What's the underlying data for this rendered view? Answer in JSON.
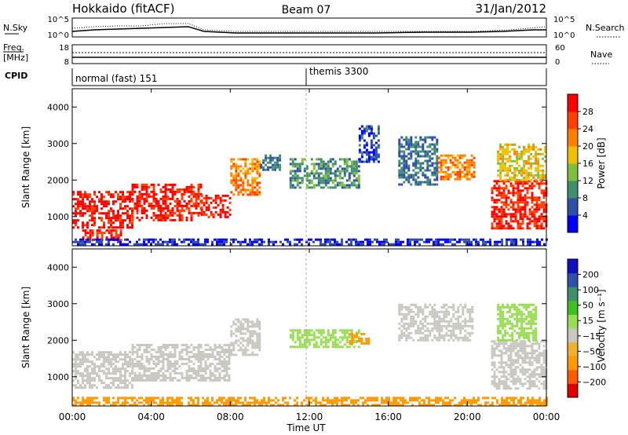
{
  "header": {
    "station": "Hokkaido (fitACF)",
    "beam": "Beam 07",
    "date": "31/Jan/2012"
  },
  "strips": {
    "nsky_label": "N.Sky",
    "nsearch_label": "N.Search",
    "nsky_ticks": [
      "10^5",
      "10^0"
    ],
    "freq_label_line1": "Freq.",
    "freq_label_line2": "[MHz]",
    "freq_ticks": [
      "18",
      "8"
    ],
    "nave_label": "Nave",
    "nave_ticks": [
      "60",
      "0"
    ],
    "cpid_label": "CPID",
    "cpid_segments": [
      {
        "name": "normal (fast) 151",
        "start_hour": 0,
        "end_hour": 12
      },
      {
        "name": "themis 3300",
        "start_hour": 12,
        "end_hour": 24
      }
    ]
  },
  "colors": {
    "power": [
      "#0000ff",
      "#2f4fa8",
      "#3f8f6f",
      "#7fbf3f",
      "#f0c000",
      "#ff8000",
      "#ff4000",
      "#ff0000"
    ],
    "velocity": [
      "#e00000",
      "#ff5a00",
      "#ff9a00",
      "#f0b030",
      "#c8c8c0",
      "#99dd55",
      "#3fc020",
      "#3f8f6f",
      "#2f4fa8",
      "#1010c0"
    ]
  },
  "chart_data": [
    {
      "type": "heatmap",
      "quantity": "Power",
      "xlabel": "",
      "ylabel": "Slant Range [km]",
      "xlim_hours": [
        0,
        24
      ],
      "ylim": [
        200,
        4500
      ],
      "yticks": [
        1000,
        2000,
        3000,
        4000
      ],
      "colorbar_label": "Power [dB]",
      "colorbar_ticks": [
        "4",
        "8",
        "12",
        "16",
        "20",
        "24",
        "28"
      ],
      "colorbar_range": [
        0,
        32
      ],
      "regions": [
        {
          "hour_start": 0.0,
          "hour_end": 3.0,
          "range_start": 700,
          "range_end": 1700,
          "value": 30
        },
        {
          "hour_start": 0.5,
          "hour_end": 2.5,
          "range_start": 350,
          "range_end": 650,
          "value": 28
        },
        {
          "hour_start": 3.0,
          "hour_end": 6.5,
          "range_start": 900,
          "range_end": 1900,
          "value": 29
        },
        {
          "hour_start": 6.5,
          "hour_end": 8.0,
          "range_start": 1000,
          "range_end": 1600,
          "value": 29
        },
        {
          "hour_start": 8.0,
          "hour_end": 9.5,
          "range_start": 1600,
          "range_end": 2600,
          "value": 22
        },
        {
          "hour_start": 9.5,
          "hour_end": 10.5,
          "range_start": 2300,
          "range_end": 2700,
          "value": 8
        },
        {
          "hour_start": 11.0,
          "hour_end": 14.5,
          "range_start": 1800,
          "range_end": 2600,
          "value": 10
        },
        {
          "hour_start": 14.5,
          "hour_end": 15.5,
          "range_start": 2500,
          "range_end": 3500,
          "value": 6
        },
        {
          "hour_start": 16.5,
          "hour_end": 18.5,
          "range_start": 1900,
          "range_end": 3200,
          "value": 8
        },
        {
          "hour_start": 18.5,
          "hour_end": 20.3,
          "range_start": 2000,
          "range_end": 2700,
          "value": 22
        },
        {
          "hour_start": 21.2,
          "hour_end": 24.0,
          "range_start": 700,
          "range_end": 2000,
          "value": 28
        },
        {
          "hour_start": 21.5,
          "hour_end": 24.0,
          "range_start": 2000,
          "range_end": 3000,
          "value": 18
        },
        {
          "hour_start": 0.0,
          "hour_end": 24.0,
          "range_start": 250,
          "range_end": 400,
          "value": 4
        }
      ]
    },
    {
      "type": "heatmap",
      "quantity": "Velocity",
      "xlabel": "Time UT",
      "ylabel": "Slant Range [km]",
      "xlim_hours": [
        0,
        24
      ],
      "xticks": [
        "00:00",
        "04:00",
        "08:00",
        "12:00",
        "16:00",
        "20:00",
        "00:00"
      ],
      "ylim": [
        200,
        4500
      ],
      "yticks": [
        1000,
        2000,
        3000,
        4000
      ],
      "colorbar_label": "Velocity [m s⁻¹]",
      "colorbar_ticks": [
        "−200",
        "−100",
        "−50",
        "−15",
        "15",
        "50",
        "100",
        "200"
      ],
      "regions": [
        {
          "hour_start": 0.0,
          "hour_end": 3.0,
          "range_start": 700,
          "range_end": 1700,
          "value": 0
        },
        {
          "hour_start": 3.0,
          "hour_end": 8.0,
          "range_start": 900,
          "range_end": 1900,
          "value": 0
        },
        {
          "hour_start": 8.0,
          "hour_end": 9.5,
          "range_start": 1600,
          "range_end": 2600,
          "value": 0
        },
        {
          "hour_start": 11.0,
          "hour_end": 14.5,
          "range_start": 1800,
          "range_end": 2300,
          "value": 40
        },
        {
          "hour_start": 14.0,
          "hour_end": 15.0,
          "range_start": 1900,
          "range_end": 2200,
          "value": -60
        },
        {
          "hour_start": 16.5,
          "hour_end": 20.3,
          "range_start": 2000,
          "range_end": 3000,
          "value": 0
        },
        {
          "hour_start": 21.2,
          "hour_end": 24.0,
          "range_start": 700,
          "range_end": 2000,
          "value": 0
        },
        {
          "hour_start": 21.5,
          "hour_end": 23.5,
          "range_start": 2000,
          "range_end": 3000,
          "value": 40
        },
        {
          "hour_start": 0.0,
          "hour_end": 24.0,
          "range_start": 250,
          "range_end": 450,
          "value": -60
        }
      ]
    }
  ]
}
